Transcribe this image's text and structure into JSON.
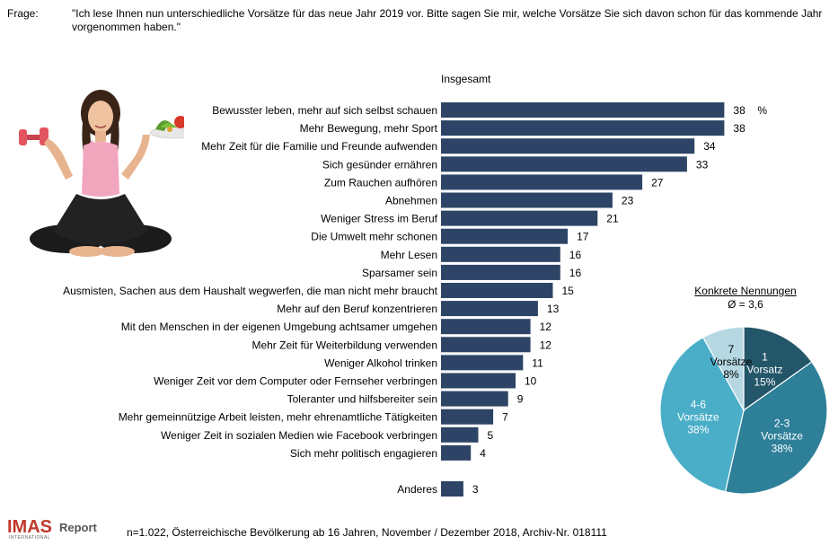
{
  "header": {
    "label": "Frage:",
    "question": "\"Ich lese Ihnen nun unterschiedliche Vorsätze für das neue Jahr 2019 vor. Bitte sagen Sie mir, welche Vorsätze Sie sich davon schon für das kommende Jahr vorgenommen haben.\""
  },
  "chart_data": [
    {
      "type": "bar",
      "orientation": "horizontal",
      "title": "Insgesamt",
      "unit": "%",
      "color": "#2d4466",
      "categories": [
        "Bewusster leben, mehr auf sich selbst schauen",
        "Mehr Bewegung, mehr Sport",
        "Mehr Zeit für die Familie und Freunde aufwenden",
        "Sich gesünder ernähren",
        "Zum Rauchen aufhören",
        "Abnehmen",
        "Weniger Stress im Beruf",
        "Die Umwelt mehr schonen",
        "Mehr Lesen",
        "Sparsamer sein",
        "Ausmisten, Sachen aus dem Haushalt wegwerfen, die man nicht mehr braucht",
        "Mehr auf den Beruf konzentrieren",
        "Mit den Menschen in der eigenen Umgebung achtsamer umgehen",
        "Mehr Zeit für Weiterbildung verwenden",
        "Weniger Alkohol trinken",
        "Weniger Zeit vor dem Computer oder Fernseher verbringen",
        "Toleranter und hilfsbereiter sein",
        "Mehr gemeinnützige Arbeit leisten, mehr ehrenamtliche Tätigkeiten",
        "Weniger Zeit in sozialen Medien wie Facebook verbringen",
        "Sich mehr politisch engagieren",
        "Anderes"
      ],
      "values": [
        38,
        38,
        34,
        33,
        27,
        23,
        21,
        17,
        16,
        16,
        15,
        13,
        12,
        12,
        11,
        10,
        9,
        7,
        5,
        4,
        3
      ]
    },
    {
      "type": "pie",
      "title": "Konkrete Nennungen",
      "subtitle": "Ø = 3,6",
      "slices": [
        {
          "label": "1 Vorsatz",
          "value": 15,
          "text": "15%",
          "color": "#235668"
        },
        {
          "label": "2-3 Vorsätze",
          "value": 38,
          "text": "38%",
          "color": "#2e7f98"
        },
        {
          "label": "4-6 Vorsätze",
          "value": 38,
          "text": "38%",
          "color": "#4aaec8"
        },
        {
          "label": "7 Vorsätze",
          "value": 8,
          "text": "8%",
          "color": "#b5d8e3"
        }
      ]
    }
  ],
  "footer": {
    "logo_brand": "IMAS",
    "logo_report": "Report",
    "logo_sub": "INTERNATIONAL",
    "note": "n=1.022, Österreichische Bevölkerung ab 16 Jahren, November / Dezember 2018, Archiv-Nr. 018111"
  }
}
